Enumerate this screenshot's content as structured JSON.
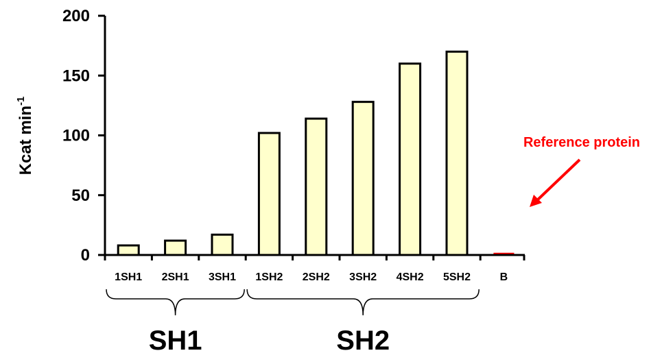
{
  "chart_data": {
    "type": "bar",
    "categories": [
      "1SH1",
      "2SH1",
      "3SH1",
      "1SH2",
      "2SH2",
      "3SH2",
      "4SH2",
      "5SH2",
      "B"
    ],
    "values": [
      8,
      12,
      17,
      102,
      114,
      128,
      160,
      170,
      1
    ],
    "ylabel_main": "Kcat min",
    "ylabel_sup": "-1",
    "ylim": [
      0,
      200
    ],
    "yticks": [
      0,
      50,
      100,
      150,
      200
    ],
    "grid": false,
    "groups": [
      {
        "label": "SH1",
        "categories": [
          "1SH1",
          "2SH1",
          "3SH1"
        ]
      },
      {
        "label": "SH2",
        "categories": [
          "1SH2",
          "2SH2",
          "3SH2",
          "4SH2",
          "5SH2"
        ]
      }
    ],
    "annotation": {
      "text": "Reference protein",
      "target_category": "B"
    },
    "colors": {
      "bar_fill": "#ffffcc",
      "bar_stroke": "#000000",
      "reference_bar": "#ff0000",
      "annotation": "#ff0000"
    }
  }
}
